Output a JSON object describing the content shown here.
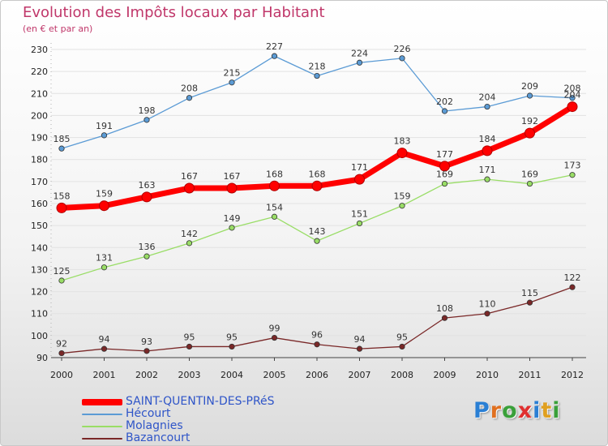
{
  "chart_data": {
    "type": "line",
    "title": "Evolution des Impôts locaux par Habitant",
    "subtitle": "(en € et par an)",
    "xlabel": "",
    "ylabel": "",
    "x": [
      "2000",
      "2001",
      "2002",
      "2003",
      "2004",
      "2005",
      "2006",
      "2007",
      "2008",
      "2009",
      "2010",
      "2011",
      "2012"
    ],
    "ylim": [
      90,
      230
    ],
    "yticks": [
      90,
      100,
      110,
      120,
      130,
      140,
      150,
      160,
      170,
      180,
      190,
      200,
      210,
      220,
      230
    ],
    "grid": "horizontal",
    "legend_position": "bottom-left",
    "series": [
      {
        "name": "Hécourt",
        "color": "#5b9bd5",
        "values": [
          185,
          191,
          198,
          208,
          215,
          227,
          218,
          224,
          226,
          202,
          204,
          209,
          208
        ]
      },
      {
        "name": "SAINT-QUENTIN-DES-PRéS",
        "color": "#ff0000",
        "values": [
          158,
          159,
          163,
          167,
          167,
          168,
          168,
          171,
          183,
          177,
          184,
          192,
          204
        ]
      },
      {
        "name": "Molagnies",
        "color": "#99dd66",
        "values": [
          125,
          131,
          136,
          142,
          149,
          154,
          143,
          151,
          159,
          169,
          171,
          169,
          173
        ]
      },
      {
        "name": "Bazancourt",
        "color": "#7a2828",
        "values": [
          92,
          94,
          93,
          95,
          95,
          99,
          96,
          94,
          95,
          108,
          110,
          115,
          122
        ]
      }
    ]
  },
  "legend": [
    {
      "label": "SAINT-QUENTIN-DES-PRéS",
      "color": "#ff0000"
    },
    {
      "label": "Hécourt",
      "color": "#5b9bd5"
    },
    {
      "label": "Molagnies",
      "color": "#99dd66"
    },
    {
      "label": "Bazancourt",
      "color": "#7a2828"
    }
  ],
  "logo": {
    "text": "Proxiti",
    "letters": [
      {
        "ch": "P",
        "color": "#2a7fd4"
      },
      {
        "ch": "r",
        "color": "#e07020"
      },
      {
        "ch": "o",
        "color": "#3aa03a"
      },
      {
        "ch": "x",
        "color": "#e03030"
      },
      {
        "ch": "i",
        "color": "#2a7fd4"
      },
      {
        "ch": "t",
        "color": "#e0a020"
      },
      {
        "ch": "i",
        "color": "#3aa03a"
      }
    ]
  }
}
